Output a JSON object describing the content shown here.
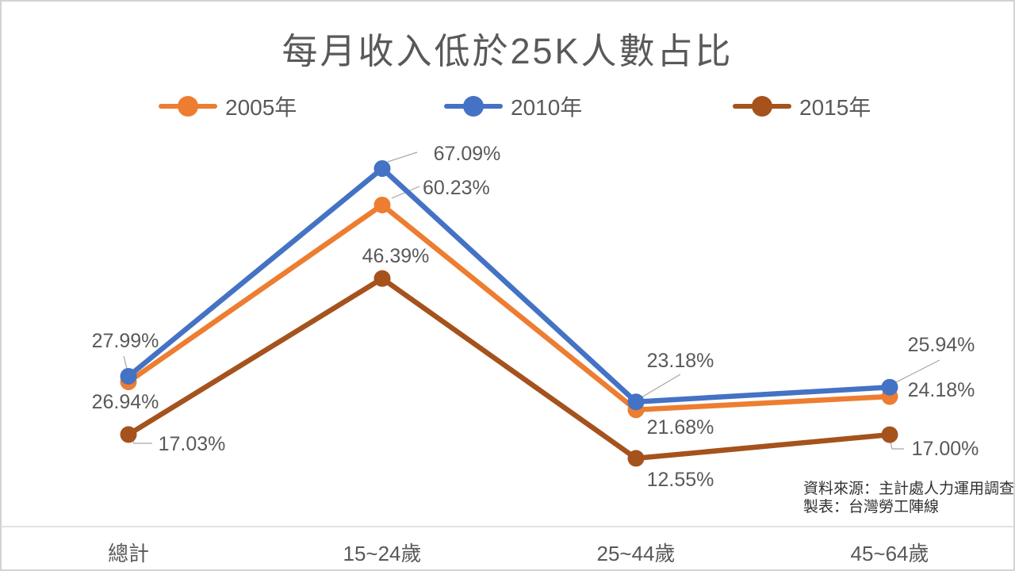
{
  "chart_data": {
    "type": "line",
    "title": "每月收入低於25K人數占比",
    "categories": [
      "總計",
      "15~24歲",
      "25~44歲",
      "45~64歲"
    ],
    "series": [
      {
        "name": "2005年",
        "color": "#ED7D31",
        "values": [
          26.94,
          60.23,
          21.68,
          24.18
        ],
        "labels": [
          "26.94%",
          "60.23%",
          "21.68%",
          "24.18%"
        ]
      },
      {
        "name": "2010年",
        "color": "#4472C4",
        "values": [
          27.99,
          67.09,
          23.18,
          25.94
        ],
        "labels": [
          "27.99%",
          "67.09%",
          "23.18%",
          "25.94%"
        ]
      },
      {
        "name": "2015年",
        "color": "#A5521D",
        "values": [
          17.03,
          46.39,
          12.55,
          17.0
        ],
        "labels": [
          "17.03%",
          "46.39%",
          "12.55%",
          "17.00%"
        ]
      }
    ],
    "ylim": [
      0,
      70
    ],
    "grid": false,
    "legend_position": "top",
    "marker": "circle",
    "axis_line_color": "#D9D9D9",
    "leader_line_color": "#A6A6A6",
    "text_color": "#595959",
    "source": [
      "資料來源：主計處人力運用調查",
      "製表：台灣勞工陣線"
    ]
  }
}
